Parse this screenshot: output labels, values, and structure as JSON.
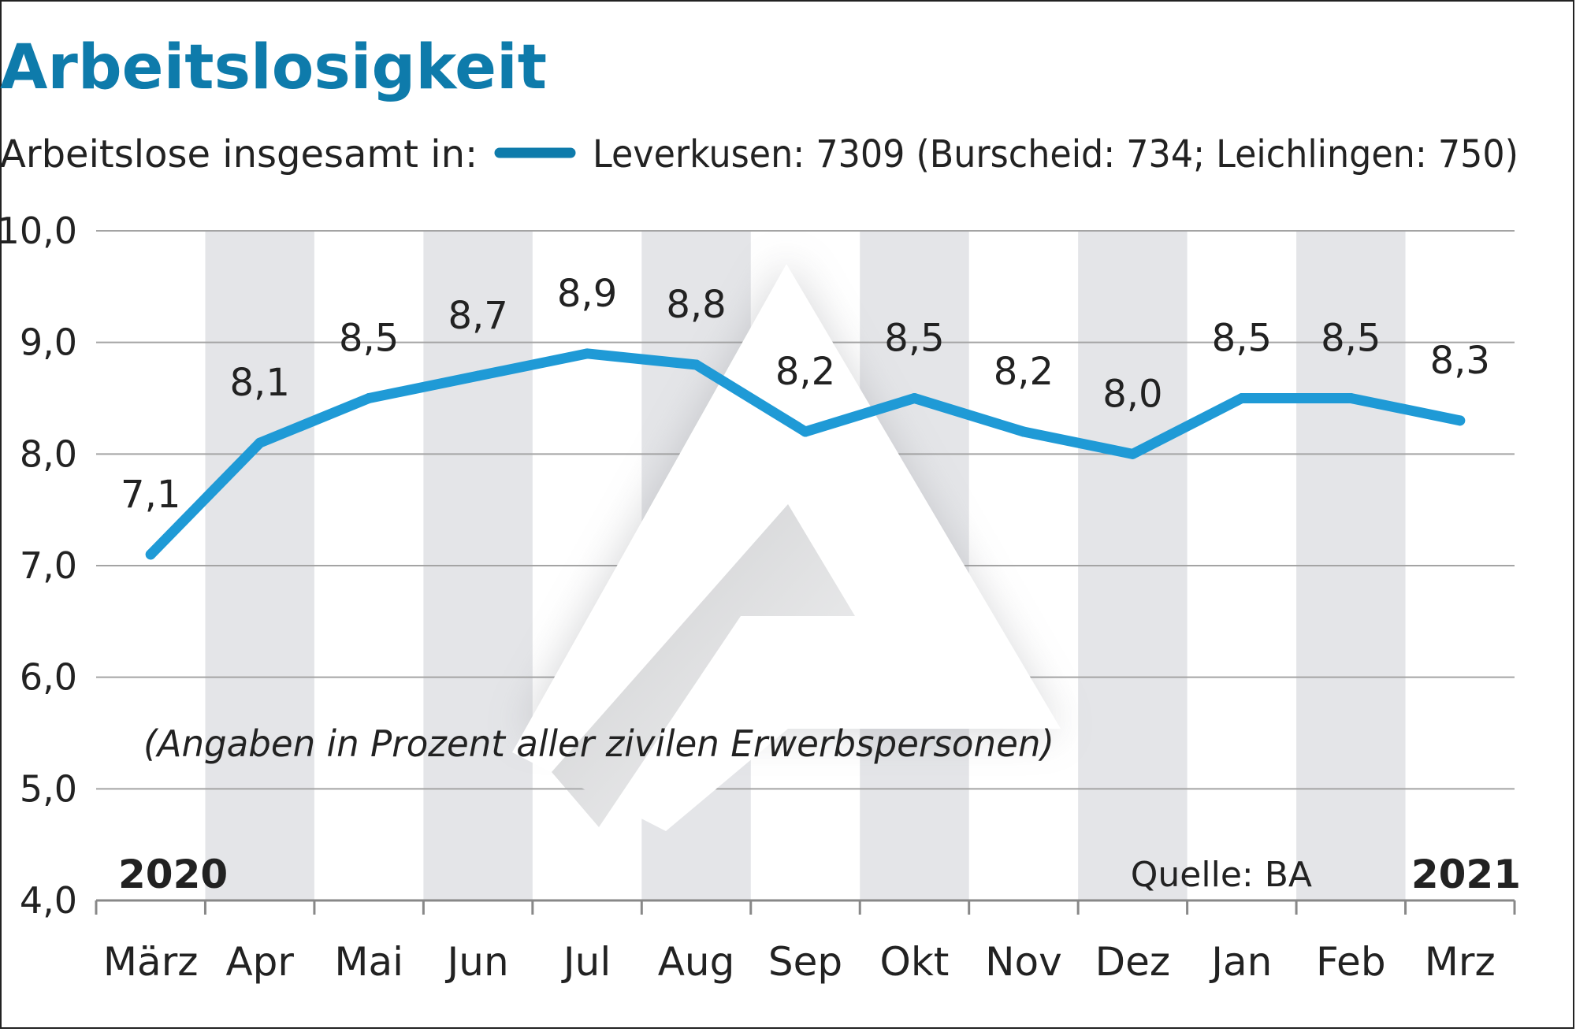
{
  "chart_data": {
    "type": "line",
    "title": "Arbeitslosigkeit",
    "subtitle_label": "Arbeitslose insgesamt in:",
    "legend": {
      "placement": "top",
      "entry": "Leverkusen: 7309 (Burscheid: 734; Leichlingen: 750)"
    },
    "note": "(Angaben in Prozent aller zivilen Erwerbspersonen)",
    "source": "Quelle: BA",
    "year_start": "2020",
    "year_end": "2021",
    "categories": [
      "März",
      "Apr",
      "Mai",
      "Jun",
      "Jul",
      "Aug",
      "Sep",
      "Okt",
      "Nov",
      "Dez",
      "Jan",
      "Feb",
      "Mrz"
    ],
    "values": [
      7.1,
      8.1,
      8.5,
      8.7,
      8.9,
      8.8,
      8.2,
      8.5,
      8.2,
      8.0,
      8.5,
      8.5,
      8.3
    ],
    "value_labels": [
      "7,1",
      "8,1",
      "8,5",
      "8,7",
      "8,9",
      "8,8",
      "8,2",
      "8,5",
      "8,2",
      "8,0",
      "8,5",
      "8,5",
      "8,3"
    ],
    "yticks": [
      4.0,
      5.0,
      6.0,
      7.0,
      8.0,
      9.0,
      10.0
    ],
    "ytick_labels": [
      "4,0",
      "5,0",
      "6,0",
      "7,0",
      "8,0",
      "9,0",
      "10,0"
    ],
    "ylim": [
      4.0,
      10.0
    ],
    "grid": true,
    "colors": {
      "title": "#0e7bab",
      "line": "#1f9ad6",
      "legend_line": "#0e7bab",
      "stripe": "#e4e5e8",
      "grid": "#a4a4a4",
      "text": "#222222"
    }
  }
}
